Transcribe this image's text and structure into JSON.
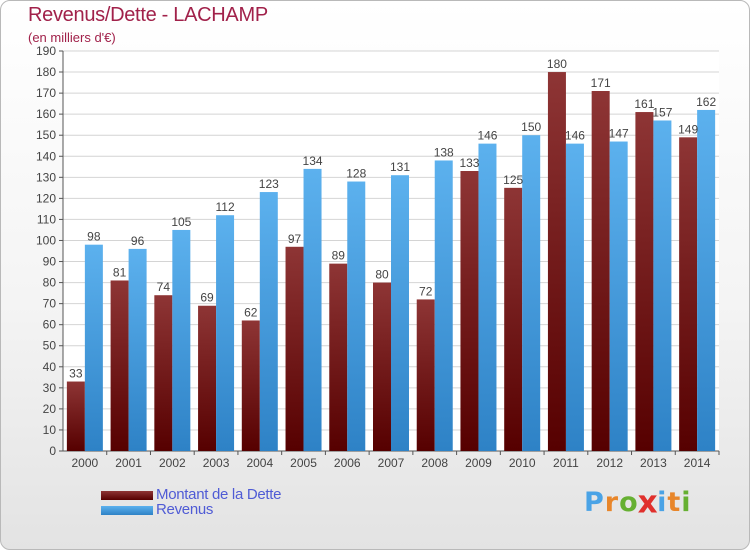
{
  "chart_data": {
    "type": "bar",
    "title": "Revenus/Dette - LACHAMP",
    "subtitle": "(en milliers d'€)",
    "categories": [
      "2000",
      "2001",
      "2002",
      "2003",
      "2004",
      "2005",
      "2006",
      "2007",
      "2008",
      "2009",
      "2010",
      "2011",
      "2012",
      "2013",
      "2014"
    ],
    "series": [
      {
        "name": "Montant de la Dette",
        "color": "#6e1212",
        "values": [
          33,
          81,
          74,
          69,
          62,
          97,
          89,
          80,
          72,
          133,
          125,
          180,
          171,
          161,
          149
        ]
      },
      {
        "name": "Revenus",
        "color": "#4aa3e6",
        "values": [
          98,
          96,
          105,
          112,
          123,
          134,
          128,
          131,
          138,
          146,
          150,
          146,
          147,
          157,
          162
        ]
      }
    ],
    "ylim": [
      0,
      190
    ],
    "yticks": [
      0,
      10,
      20,
      30,
      40,
      50,
      60,
      70,
      80,
      90,
      100,
      110,
      120,
      130,
      140,
      150,
      160,
      170,
      180,
      190
    ],
    "grid": true,
    "legend_position": "bottom-left"
  },
  "logo": {
    "text": "Proxiti",
    "letter_colors": [
      "#4aa3e6",
      "#e8862a",
      "#66b032",
      "#e0302c",
      "#4aa3e6",
      "#e8862a",
      "#66b032"
    ]
  }
}
